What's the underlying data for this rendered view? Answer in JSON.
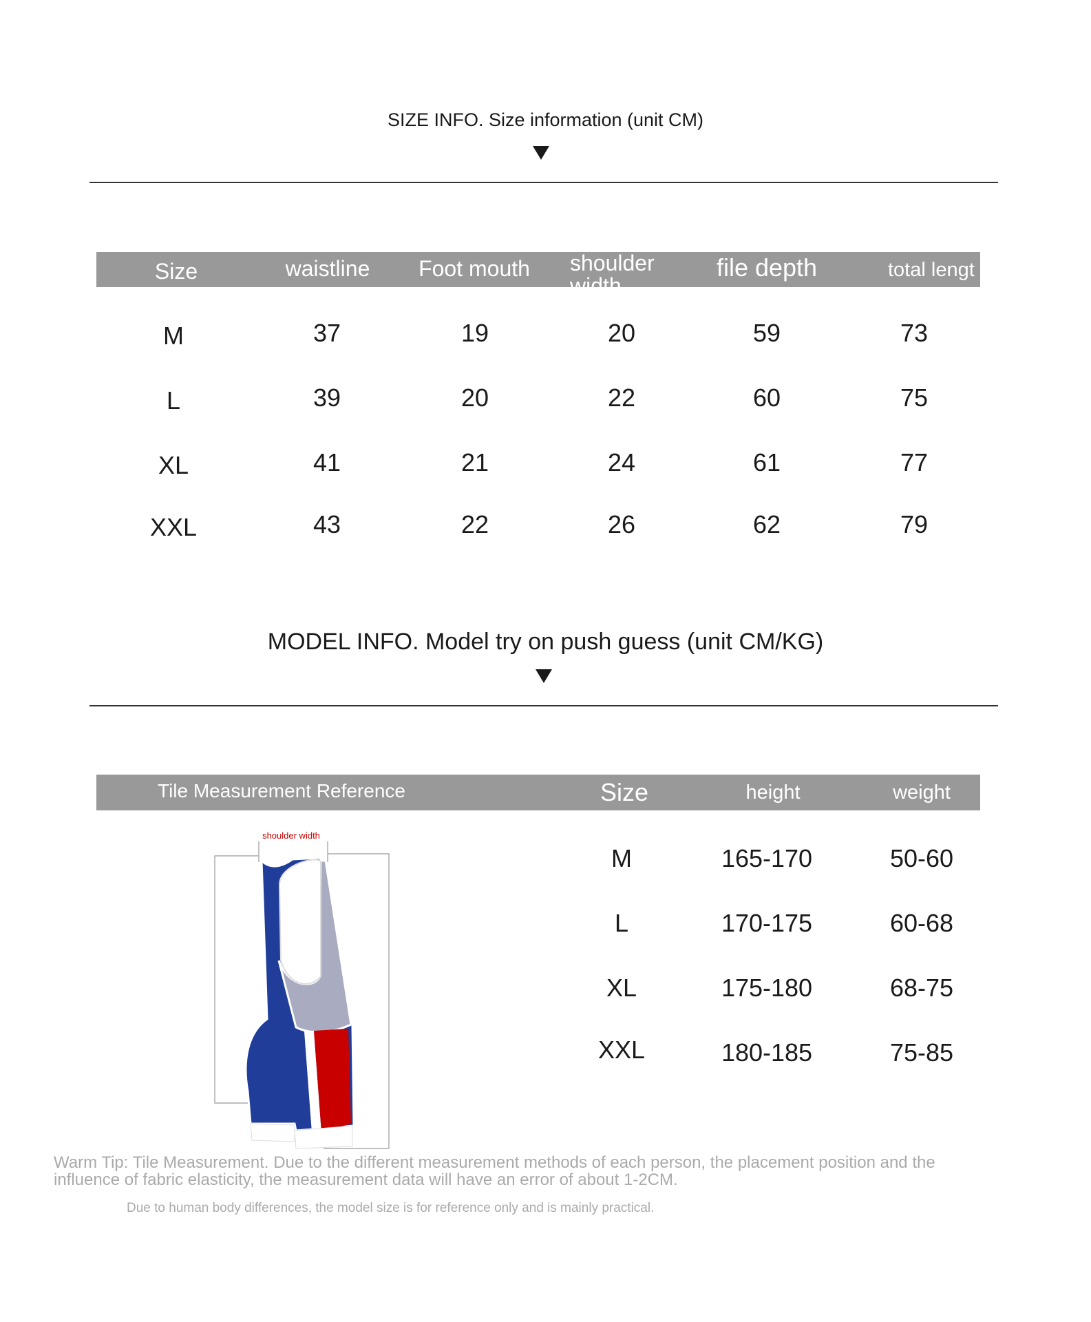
{
  "size_section": {
    "title": "SIZE INFO. Size information (unit CM)",
    "headers": [
      "Size",
      "waistline",
      "Foot mouth",
      "shoulder width",
      "file depth",
      "total lengt"
    ],
    "rows": [
      [
        "M",
        "37",
        "19",
        "20",
        "59",
        "73"
      ],
      [
        "L",
        "39",
        "20",
        "22",
        "60",
        "75"
      ],
      [
        "XL",
        "41",
        "21",
        "24",
        "61",
        "77"
      ],
      [
        "XXL",
        "43",
        "22",
        "26",
        "62",
        "79"
      ]
    ]
  },
  "model_section": {
    "title": "MODEL INFO. Model try on push guess (unit CM/KG)",
    "reference_label": "Tile Measurement Reference",
    "headers": [
      "Size",
      "height",
      "weight"
    ],
    "rows": [
      [
        "M",
        "165-170",
        "50-60"
      ],
      [
        "L",
        "170-175",
        "60-68"
      ],
      [
        "XL",
        "175-180",
        "68-75"
      ],
      [
        "XXL",
        "180-185",
        "75-85"
      ]
    ],
    "diagram_label": "shoulder width"
  },
  "colors": {
    "header_bg": "#999999",
    "blue": "#1f3d99",
    "red": "#c80000",
    "gray_panel": "#a9abc0"
  },
  "footer": {
    "warm_tip_line1": "Warm Tip: Tile Measurement. Due to the different measurement methods of each person, the placement position and the",
    "warm_tip_line2": "influence of fabric elasticity, the measurement data will have an error of about 1-2CM.",
    "note": "Due to human body differences, the model size is for reference only and is mainly practical."
  }
}
